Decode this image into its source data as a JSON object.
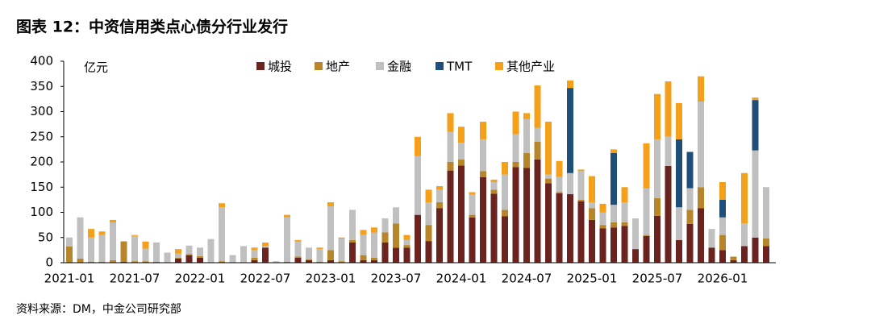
{
  "chart_data": {
    "type": "stacked_bar",
    "title": "图表 12：中资信用类点心债分行业发行",
    "y_label": "亿元",
    "source": "资料来源：DM，中金公司研究部",
    "categories": [
      "2021-01",
      null,
      null,
      null,
      null,
      null,
      "2021-07",
      null,
      null,
      null,
      null,
      null,
      "2022-01",
      null,
      null,
      null,
      null,
      null,
      "2022-07",
      null,
      null,
      null,
      null,
      null,
      "2023-01",
      null,
      null,
      null,
      null,
      null,
      "2023-07",
      null,
      null,
      null,
      null,
      null,
      "2024-01",
      null,
      null,
      null,
      null,
      null,
      "2024-07",
      null,
      null,
      null,
      null,
      null,
      "2025-01",
      null,
      null,
      null,
      null,
      null,
      "2025-07",
      null,
      null,
      null,
      null,
      null,
      "2026-01",
      null,
      null,
      null,
      null
    ],
    "ylim": [
      0,
      400
    ],
    "yticks": [
      0,
      50,
      100,
      150,
      200,
      250,
      300,
      350,
      400
    ],
    "legend": "top",
    "series": [
      {
        "name": "城投",
        "color": "#6b2320",
        "values": [
          0,
          0,
          0,
          0,
          0,
          2,
          0,
          0,
          0,
          0,
          8,
          15,
          10,
          0,
          0,
          0,
          0,
          5,
          30,
          0,
          0,
          10,
          5,
          0,
          5,
          0,
          40,
          5,
          5,
          40,
          30,
          30,
          95,
          43,
          108,
          183,
          193,
          90,
          170,
          137,
          92,
          190,
          188,
          205,
          158,
          138,
          136,
          122,
          85,
          68,
          70,
          73,
          27,
          53,
          93,
          192,
          45,
          77,
          108,
          30,
          25,
          5,
          33,
          50,
          33
        ]
      },
      {
        "name": "地产",
        "color": "#b8862a",
        "values": [
          32,
          8,
          2,
          2,
          5,
          40,
          3,
          3,
          2,
          0,
          2,
          2,
          3,
          0,
          3,
          0,
          0,
          5,
          0,
          0,
          2,
          2,
          2,
          2,
          20,
          3,
          5,
          10,
          5,
          20,
          48,
          5,
          0,
          32,
          12,
          17,
          12,
          5,
          12,
          8,
          13,
          10,
          30,
          35,
          9,
          2,
          0,
          3,
          23,
          7,
          10,
          7,
          0,
          2,
          35,
          0,
          0,
          28,
          42,
          0,
          30,
          7,
          0,
          0,
          15
        ]
      },
      {
        "name": "金融",
        "color": "#c0c0c0",
        "values": [
          18,
          82,
          48,
          53,
          75,
          1,
          50,
          25,
          37,
          20,
          8,
          17,
          17,
          47,
          107,
          15,
          33,
          15,
          3,
          3,
          88,
          30,
          23,
          25,
          87,
          45,
          60,
          40,
          50,
          28,
          32,
          10,
          117,
          45,
          25,
          60,
          33,
          40,
          63,
          15,
          70,
          55,
          67,
          28,
          8,
          30,
          42,
          57,
          12,
          25,
          35,
          40,
          61,
          93,
          117,
          58,
          65,
          43,
          170,
          37,
          35,
          0,
          45,
          173,
          102
        ]
      },
      {
        "name": "TMT",
        "color": "#1f4e79",
        "values": [
          0,
          0,
          0,
          0,
          0,
          0,
          0,
          0,
          0,
          0,
          0,
          0,
          0,
          0,
          0,
          0,
          0,
          0,
          0,
          0,
          0,
          0,
          0,
          0,
          0,
          0,
          0,
          0,
          0,
          0,
          0,
          0,
          0,
          0,
          0,
          0,
          0,
          0,
          0,
          0,
          0,
          0,
          0,
          0,
          0,
          0,
          169,
          0,
          0,
          0,
          103,
          0,
          0,
          0,
          0,
          0,
          135,
          72,
          0,
          0,
          35,
          0,
          0,
          100,
          0
        ]
      },
      {
        "name": "其他产业",
        "color": "#f5a01a",
        "values": [
          0,
          0,
          17,
          7,
          5,
          0,
          2,
          14,
          1,
          0,
          9,
          0,
          0,
          0,
          8,
          0,
          0,
          5,
          7,
          0,
          5,
          3,
          0,
          3,
          8,
          2,
          0,
          10,
          10,
          0,
          0,
          10,
          38,
          25,
          7,
          37,
          32,
          5,
          35,
          5,
          25,
          45,
          12,
          84,
          105,
          32,
          15,
          3,
          52,
          17,
          7,
          30,
          0,
          89,
          90,
          110,
          72,
          0,
          50,
          0,
          35,
          0,
          100,
          5,
          0
        ]
      }
    ]
  }
}
